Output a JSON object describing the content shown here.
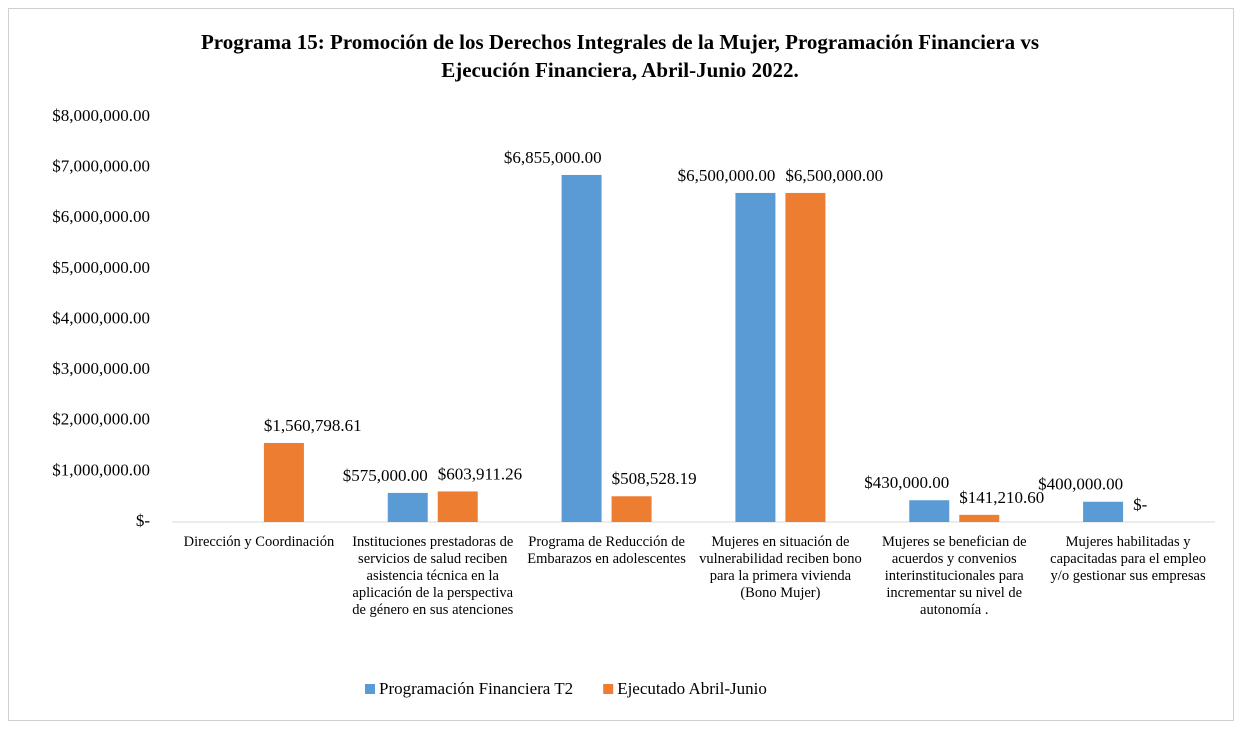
{
  "chart_data": {
    "type": "bar",
    "title": "Programa 15: Promoción de los Derechos Integrales de la Mujer, Programación Financiera vs Ejecución Financiera, Abril-Junio 2022.",
    "categories": [
      "Dirección y Coordinación",
      "Instituciones prestadoras de servicios de salud reciben asistencia técnica en la aplicación de la perspectiva de género en sus atenciones",
      "Programa de Reducción de Embarazos en adolescentes",
      "Mujeres en situación de vulnerabilidad reciben bono para la primera vivienda (Bono Mujer)",
      "Mujeres se benefician de acuerdos y convenios interinstitucionales para incrementar su nivel de autonomía .",
      "Mujeres habilitadas y capacitadas para el empleo y/o gestionar sus empresas"
    ],
    "series": [
      {
        "name": "Programación Financiera T2",
        "color": "#5b9bd5",
        "values": [
          null,
          575000,
          6855000,
          6500000,
          430000,
          400000
        ],
        "value_labels": [
          null,
          "$575,000.00",
          "$6,855,000.00",
          "$6,500,000.00",
          "$430,000.00",
          "$400,000.00"
        ]
      },
      {
        "name": "Ejecutado Abril-Junio",
        "color": "#ed7d31",
        "values": [
          1560798.61,
          603911.26,
          508528.19,
          6500000,
          141210.6,
          0
        ],
        "value_labels": [
          "$1,560,798.61",
          "$603,911.26",
          "$508,528.19",
          "$6,500,000.00",
          "$141,210.60",
          "$-"
        ]
      }
    ],
    "ylim": [
      0,
      8000000
    ],
    "yticks": [
      {
        "value": 0,
        "label": "$-"
      },
      {
        "value": 1000000,
        "label": "$1,000,000.00"
      },
      {
        "value": 2000000,
        "label": "$2,000,000.00"
      },
      {
        "value": 3000000,
        "label": "$3,000,000.00"
      },
      {
        "value": 4000000,
        "label": "$4,000,000.00"
      },
      {
        "value": 5000000,
        "label": "$5,000,000.00"
      },
      {
        "value": 6000000,
        "label": "$6,000,000.00"
      },
      {
        "value": 7000000,
        "label": "$7,000,000.00"
      },
      {
        "value": 8000000,
        "label": "$8,000,000.00"
      }
    ],
    "grid": false,
    "legend": "bottom"
  }
}
